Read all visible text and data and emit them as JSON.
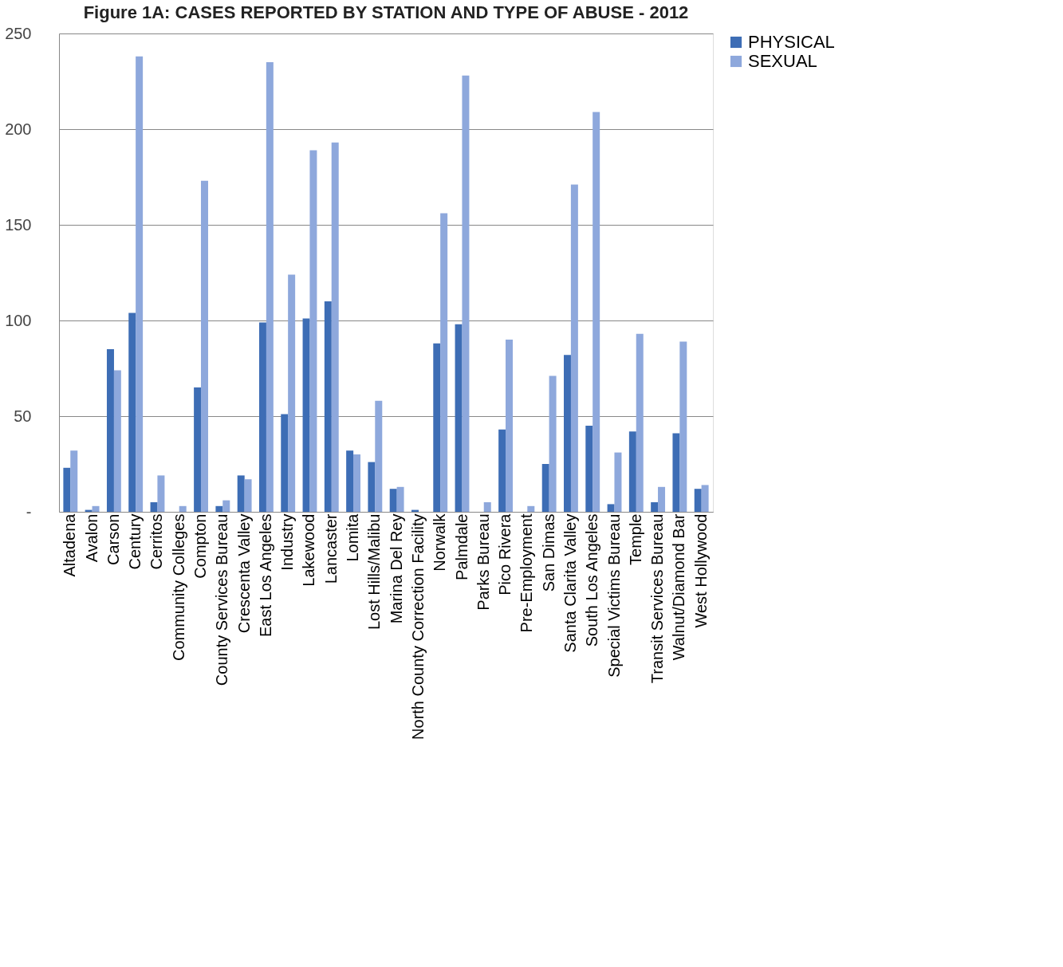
{
  "chart_data": {
    "type": "bar",
    "title": "Figure 1A: CASES REPORTED BY STATION AND TYPE OF ABUSE - 2012",
    "categories": [
      "Altadena",
      "Avalon",
      "Carson",
      "Century",
      "Cerritos",
      "Community Colleges",
      "Compton",
      "County Services Bureau",
      "Crescenta Valley",
      "East Los Angeles",
      "Industry",
      "Lakewood",
      "Lancaster",
      "Lomita",
      "Lost Hills/Malibu",
      "Marina Del Rey",
      "North County Correction Facility",
      "Norwalk",
      "Palmdale",
      "Parks Bureau",
      "Pico Rivera",
      "Pre-Employment",
      "San Dimas",
      "Santa Clarita Valley",
      "South Los Angeles",
      "Special Victims Bureau",
      "Temple",
      "Transit Services Bureau",
      "Walnut/Diamond Bar",
      "West Hollywood"
    ],
    "series": [
      {
        "name": "PHYSICAL",
        "color": "#3d6db5",
        "values": [
          23,
          1,
          85,
          104,
          5,
          0,
          65,
          3,
          19,
          99,
          51,
          101,
          110,
          32,
          26,
          12,
          1,
          88,
          98,
          0,
          43,
          0,
          25,
          82,
          45,
          4,
          42,
          5,
          41,
          12
        ]
      },
      {
        "name": "SEXUAL",
        "color": "#8ea8dc",
        "values": [
          32,
          3,
          74,
          238,
          19,
          3,
          173,
          6,
          17,
          235,
          124,
          189,
          193,
          30,
          58,
          13,
          0,
          156,
          228,
          5,
          90,
          3,
          71,
          171,
          209,
          31,
          93,
          13,
          89,
          14
        ]
      }
    ],
    "ylim": [
      0,
      250
    ],
    "yticks": [
      {
        "value": 0,
        "label": "-"
      },
      50,
      100,
      150,
      200,
      250
    ],
    "grid": "y",
    "legend": "right"
  }
}
